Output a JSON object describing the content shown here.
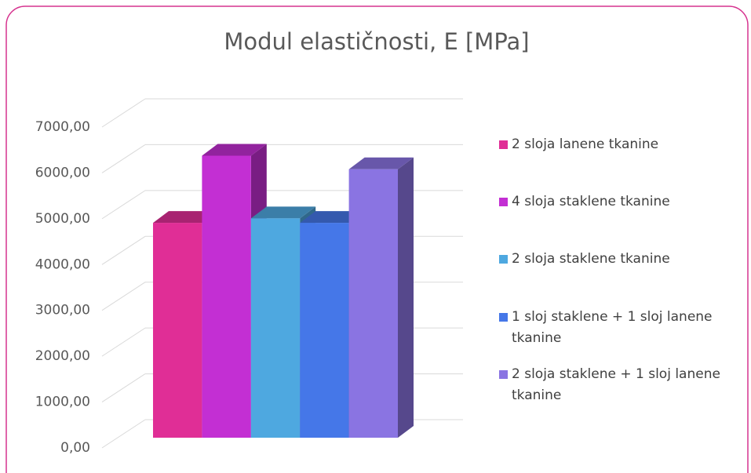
{
  "chart_data": {
    "type": "bar3d",
    "title": "Modul elastičnosti, E [MPa]",
    "categories": [
      null
    ],
    "series": [
      {
        "name": "2 sloja lanene tkanine",
        "color": "#e02e96",
        "values": [
          4770
        ]
      },
      {
        "name": "4 sloja staklene tkanine",
        "color": "#c32fd3",
        "values": [
          6260
        ]
      },
      {
        "name": "2 sloja staklene tkanine",
        "color": "#4ea8e0",
        "values": [
          4870
        ]
      },
      {
        "name": "1 sloj staklene + 1 sloj lanene tkanine",
        "color": "#4577e8",
        "values": [
          4770
        ]
      },
      {
        "name": "2 sloja staklene + 1 sloj lanene tkanine",
        "color": "#8a74e2",
        "values": [
          5960
        ]
      }
    ],
    "ylim": [
      0,
      7000
    ],
    "yticks": [
      {
        "value": 0,
        "label": "0,00"
      },
      {
        "value": 1000,
        "label": "1000,00"
      },
      {
        "value": 2000,
        "label": "2000,00"
      },
      {
        "value": 3000,
        "label": "3000,00"
      },
      {
        "value": 4000,
        "label": "4000,00"
      },
      {
        "value": 5000,
        "label": "5000,00"
      },
      {
        "value": 6000,
        "label": "6000,00"
      },
      {
        "value": 7000,
        "label": "7000,00"
      }
    ],
    "grid": true,
    "legend": "right"
  }
}
